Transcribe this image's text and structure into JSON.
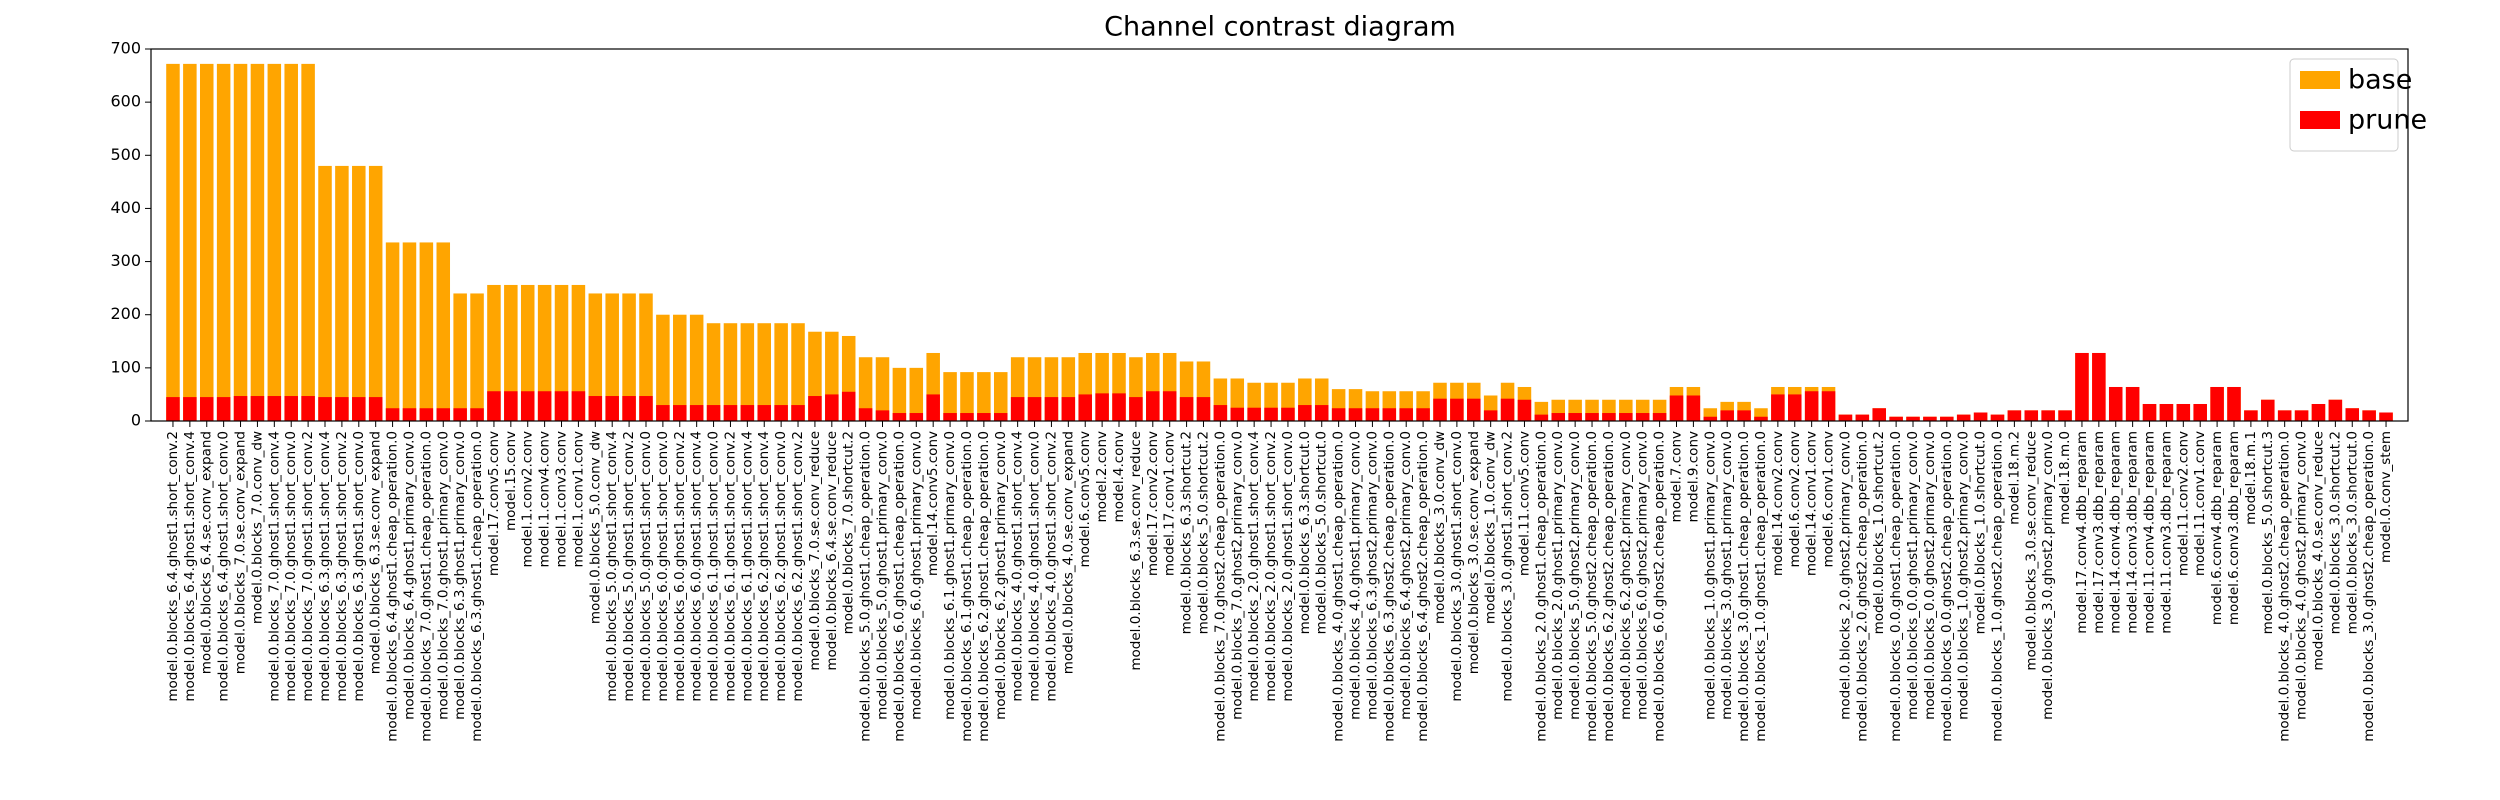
{
  "chart_data": {
    "type": "bar",
    "title": "Channel contrast diagram",
    "categories": [
      "model.0.blocks_6.4.ghost1.short_conv.2",
      "model.0.blocks_6.4.ghost1.short_conv.4",
      "model.0.blocks_6.4.se.conv_expand",
      "model.0.blocks_6.4.ghost1.short_conv.0",
      "model.0.blocks_7.0.se.conv_expand",
      "model.0.blocks_7.0.conv_dw",
      "model.0.blocks_7.0.ghost1.short_conv.4",
      "model.0.blocks_7.0.ghost1.short_conv.0",
      "model.0.blocks_7.0.ghost1.short_conv.2",
      "model.0.blocks_6.3.ghost1.short_conv.4",
      "model.0.blocks_6.3.ghost1.short_conv.2",
      "model.0.blocks_6.3.ghost1.short_conv.0",
      "model.0.blocks_6.3.se.conv_expand",
      "model.0.blocks_6.4.ghost1.cheap_operation.0",
      "model.0.blocks_6.4.ghost1.primary_conv.0",
      "model.0.blocks_7.0.ghost1.cheap_operation.0",
      "model.0.blocks_7.0.ghost1.primary_conv.0",
      "model.0.blocks_6.3.ghost1.primary_conv.0",
      "model.0.blocks_6.3.ghost1.cheap_operation.0",
      "model.17.conv5.conv",
      "model.15.conv",
      "model.1.conv2.conv",
      "model.1.conv4.conv",
      "model.1.conv3.conv",
      "model.1.conv1.conv",
      "model.0.blocks_5.0.conv_dw",
      "model.0.blocks_5.0.ghost1.short_conv.4",
      "model.0.blocks_5.0.ghost1.short_conv.2",
      "model.0.blocks_5.0.ghost1.short_conv.0",
      "model.0.blocks_6.0.ghost1.short_conv.0",
      "model.0.blocks_6.0.ghost1.short_conv.2",
      "model.0.blocks_6.0.ghost1.short_conv.4",
      "model.0.blocks_6.1.ghost1.short_conv.0",
      "model.0.blocks_6.1.ghost1.short_conv.2",
      "model.0.blocks_6.1.ghost1.short_conv.4",
      "model.0.blocks_6.2.ghost1.short_conv.4",
      "model.0.blocks_6.2.ghost1.short_conv.0",
      "model.0.blocks_6.2.ghost1.short_conv.2",
      "model.0.blocks_7.0.se.conv_reduce",
      "model.0.blocks_6.4.se.conv_reduce",
      "model.0.blocks_7.0.shortcut.2",
      "model.0.blocks_5.0.ghost1.cheap_operation.0",
      "model.0.blocks_5.0.ghost1.primary_conv.0",
      "model.0.blocks_6.0.ghost1.cheap_operation.0",
      "model.0.blocks_6.0.ghost1.primary_conv.0",
      "model.14.conv5.conv",
      "model.0.blocks_6.1.ghost1.primary_conv.0",
      "model.0.blocks_6.1.ghost1.cheap_operation.0",
      "model.0.blocks_6.2.ghost1.cheap_operation.0",
      "model.0.blocks_6.2.ghost1.primary_conv.0",
      "model.0.blocks_4.0.ghost1.short_conv.4",
      "model.0.blocks_4.0.ghost1.short_conv.0",
      "model.0.blocks_4.0.ghost1.short_conv.2",
      "model.0.blocks_4.0.se.conv_expand",
      "model.6.conv5.conv",
      "model.2.conv",
      "model.4.conv",
      "model.0.blocks_6.3.se.conv_reduce",
      "model.17.conv2.conv",
      "model.17.conv1.conv",
      "model.0.blocks_6.3.shortcut.2",
      "model.0.blocks_5.0.shortcut.2",
      "model.0.blocks_7.0.ghost2.cheap_operation.0",
      "model.0.blocks_7.0.ghost2.primary_conv.0",
      "model.0.blocks_2.0.ghost1.short_conv.4",
      "model.0.blocks_2.0.ghost1.short_conv.2",
      "model.0.blocks_2.0.ghost1.short_conv.0",
      "model.0.blocks_6.3.shortcut.0",
      "model.0.blocks_5.0.shortcut.0",
      "model.0.blocks_4.0.ghost1.cheap_operation.0",
      "model.0.blocks_4.0.ghost1.primary_conv.0",
      "model.0.blocks_6.3.ghost2.primary_conv.0",
      "model.0.blocks_6.3.ghost2.cheap_operation.0",
      "model.0.blocks_6.4.ghost2.primary_conv.0",
      "model.0.blocks_6.4.ghost2.cheap_operation.0",
      "model.0.blocks_3.0.conv_dw",
      "model.0.blocks_3.0.ghost1.short_conv.0",
      "model.0.blocks_3.0.se.conv_expand",
      "model.0.blocks_1.0.conv_dw",
      "model.0.blocks_3.0.ghost1.short_conv.2",
      "model.11.conv5.conv",
      "model.0.blocks_2.0.ghost1.cheap_operation.0",
      "model.0.blocks_2.0.ghost1.primary_conv.0",
      "model.0.blocks_5.0.ghost2.primary_conv.0",
      "model.0.blocks_5.0.ghost2.cheap_operation.0",
      "model.0.blocks_6.2.ghost2.cheap_operation.0",
      "model.0.blocks_6.2.ghost2.primary_conv.0",
      "model.0.blocks_6.0.ghost2.primary_conv.0",
      "model.0.blocks_6.0.ghost2.cheap_operation.0",
      "model.7.conv",
      "model.9.conv",
      "model.0.blocks_1.0.ghost1.primary_conv.0",
      "model.0.blocks_3.0.ghost1.primary_conv.0",
      "model.0.blocks_3.0.ghost1.cheap_operation.0",
      "model.0.blocks_1.0.ghost1.cheap_operation.0",
      "model.14.conv2.conv",
      "model.6.conv2.conv",
      "model.14.conv1.conv",
      "model.6.conv1.conv",
      "model.0.blocks_2.0.ghost2.primary_conv.0",
      "model.0.blocks_2.0.ghost2.cheap_operation.0",
      "model.0.blocks_1.0.shortcut.2",
      "model.0.blocks_0.0.ghost1.cheap_operation.0",
      "model.0.blocks_0.0.ghost1.primary_conv.0",
      "model.0.blocks_0.0.ghost2.primary_conv.0",
      "model.0.blocks_0.0.ghost2.cheap_operation.0",
      "model.0.blocks_1.0.ghost2.primary_conv.0",
      "model.0.blocks_1.0.shortcut.0",
      "model.0.blocks_1.0.ghost2.cheap_operation.0",
      "model.18.m.2",
      "model.0.blocks_3.0.se.conv_reduce",
      "model.0.blocks_3.0.ghost2.primary_conv.0",
      "model.18.m.0",
      "model.17.conv4.dbb_reparam",
      "model.17.conv3.dbb_reparam",
      "model.14.conv4.dbb_reparam",
      "model.14.conv3.dbb_reparam",
      "model.11.conv4.dbb_reparam",
      "model.11.conv3.dbb_reparam",
      "model.11.conv2.conv",
      "model.11.conv1.conv",
      "model.6.conv4.dbb_reparam",
      "model.6.conv3.dbb_reparam",
      "model.18.m.1",
      "model.0.blocks_5.0.shortcut.3",
      "model.0.blocks_4.0.ghost2.cheap_operation.0",
      "model.0.blocks_4.0.ghost2.primary_conv.0",
      "model.0.blocks_4.0.se.conv_reduce",
      "model.0.blocks_3.0.shortcut.2",
      "model.0.blocks_3.0.shortcut.0",
      "model.0.blocks_3.0.ghost2.cheap_operation.0",
      "model.0.conv_stem"
    ],
    "series": [
      {
        "name": "base",
        "color": "#ffa500",
        "values": [
          672,
          672,
          672,
          672,
          672,
          672,
          672,
          672,
          672,
          480,
          480,
          480,
          480,
          336,
          336,
          336,
          336,
          240,
          240,
          256,
          256,
          256,
          256,
          256,
          256,
          240,
          240,
          240,
          240,
          200,
          200,
          200,
          184,
          184,
          184,
          184,
          184,
          184,
          168,
          168,
          160,
          120,
          120,
          100,
          100,
          128,
          92,
          92,
          92,
          92,
          120,
          120,
          120,
          120,
          128,
          128,
          128,
          120,
          128,
          128,
          112,
          112,
          80,
          80,
          72,
          72,
          72,
          80,
          80,
          60,
          60,
          56,
          56,
          56,
          56,
          72,
          72,
          72,
          48,
          72,
          64,
          36,
          40,
          40,
          40,
          40,
          40,
          40,
          40,
          64,
          64,
          24,
          36,
          36,
          24,
          64,
          64,
          64,
          64,
          12,
          12,
          24,
          8,
          8,
          8,
          8,
          12,
          16,
          12,
          20,
          20,
          20,
          20,
          128,
          128,
          64,
          64,
          32,
          32,
          32,
          32,
          64,
          64,
          20,
          40,
          20,
          20,
          32,
          40,
          24,
          20,
          16
        ]
      },
      {
        "name": "prune",
        "color": "#ff0000",
        "values": [
          45,
          45,
          45,
          45,
          47,
          47,
          47,
          47,
          47,
          45,
          45,
          45,
          45,
          24,
          24,
          24,
          24,
          24,
          24,
          56,
          56,
          56,
          56,
          56,
          56,
          47,
          47,
          47,
          47,
          30,
          30,
          30,
          30,
          30,
          30,
          30,
          30,
          30,
          47,
          50,
          55,
          24,
          20,
          15,
          15,
          50,
          15,
          15,
          15,
          15,
          45,
          45,
          45,
          45,
          50,
          52,
          52,
          45,
          56,
          56,
          45,
          45,
          30,
          25,
          25,
          25,
          25,
          30,
          30,
          24,
          24,
          24,
          24,
          24,
          24,
          42,
          42,
          42,
          20,
          42,
          40,
          12,
          15,
          15,
          15,
          15,
          15,
          15,
          15,
          48,
          48,
          8,
          20,
          20,
          8,
          50,
          50,
          56,
          56,
          12,
          12,
          24,
          8,
          8,
          8,
          8,
          12,
          16,
          12,
          20,
          20,
          20,
          20,
          128,
          128,
          64,
          64,
          32,
          32,
          32,
          32,
          64,
          64,
          20,
          40,
          20,
          20,
          32,
          40,
          24,
          20,
          16
        ]
      }
    ],
    "ylim": [
      0,
      700
    ],
    "yticks": [
      0,
      100,
      200,
      300,
      400,
      500,
      600,
      700
    ],
    "legend": "upper right"
  }
}
